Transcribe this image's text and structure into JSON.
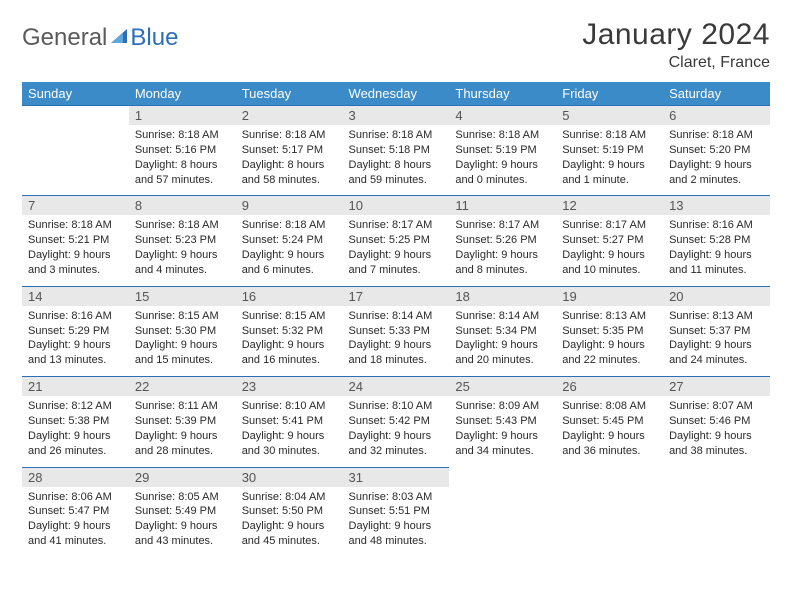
{
  "logo": {
    "text_gray": "General",
    "text_blue": "Blue"
  },
  "header": {
    "title": "January 2024",
    "location": "Claret, France"
  },
  "colors": {
    "header_bg": "#3b8bc8",
    "header_text": "#ffffff",
    "row_divider": "#2d6fb5",
    "daynum_bg": "#e8e8e8",
    "daynum_text": "#555555",
    "body_text": "#2a2a2a",
    "title_text": "#3a3a3a",
    "logo_gray": "#5a5a5a",
    "logo_blue": "#2d6fb5",
    "page_bg": "#ffffff"
  },
  "fonts": {
    "family": "Arial, Helvetica, sans-serif",
    "title_size_pt": 22,
    "subtitle_size_pt": 12,
    "weekday_size_pt": 10,
    "daynum_size_pt": 10,
    "body_size_pt": 8
  },
  "calendar": {
    "type": "table",
    "weekdays": [
      "Sunday",
      "Monday",
      "Tuesday",
      "Wednesday",
      "Thursday",
      "Friday",
      "Saturday"
    ],
    "weeks": [
      [
        null,
        {
          "n": "1",
          "sunrise": "8:18 AM",
          "sunset": "5:16 PM",
          "daylight": "8 hours and 57 minutes."
        },
        {
          "n": "2",
          "sunrise": "8:18 AM",
          "sunset": "5:17 PM",
          "daylight": "8 hours and 58 minutes."
        },
        {
          "n": "3",
          "sunrise": "8:18 AM",
          "sunset": "5:18 PM",
          "daylight": "8 hours and 59 minutes."
        },
        {
          "n": "4",
          "sunrise": "8:18 AM",
          "sunset": "5:19 PM",
          "daylight": "9 hours and 0 minutes."
        },
        {
          "n": "5",
          "sunrise": "8:18 AM",
          "sunset": "5:19 PM",
          "daylight": "9 hours and 1 minute."
        },
        {
          "n": "6",
          "sunrise": "8:18 AM",
          "sunset": "5:20 PM",
          "daylight": "9 hours and 2 minutes."
        }
      ],
      [
        {
          "n": "7",
          "sunrise": "8:18 AM",
          "sunset": "5:21 PM",
          "daylight": "9 hours and 3 minutes."
        },
        {
          "n": "8",
          "sunrise": "8:18 AM",
          "sunset": "5:23 PM",
          "daylight": "9 hours and 4 minutes."
        },
        {
          "n": "9",
          "sunrise": "8:18 AM",
          "sunset": "5:24 PM",
          "daylight": "9 hours and 6 minutes."
        },
        {
          "n": "10",
          "sunrise": "8:17 AM",
          "sunset": "5:25 PM",
          "daylight": "9 hours and 7 minutes."
        },
        {
          "n": "11",
          "sunrise": "8:17 AM",
          "sunset": "5:26 PM",
          "daylight": "9 hours and 8 minutes."
        },
        {
          "n": "12",
          "sunrise": "8:17 AM",
          "sunset": "5:27 PM",
          "daylight": "9 hours and 10 minutes."
        },
        {
          "n": "13",
          "sunrise": "8:16 AM",
          "sunset": "5:28 PM",
          "daylight": "9 hours and 11 minutes."
        }
      ],
      [
        {
          "n": "14",
          "sunrise": "8:16 AM",
          "sunset": "5:29 PM",
          "daylight": "9 hours and 13 minutes."
        },
        {
          "n": "15",
          "sunrise": "8:15 AM",
          "sunset": "5:30 PM",
          "daylight": "9 hours and 15 minutes."
        },
        {
          "n": "16",
          "sunrise": "8:15 AM",
          "sunset": "5:32 PM",
          "daylight": "9 hours and 16 minutes."
        },
        {
          "n": "17",
          "sunrise": "8:14 AM",
          "sunset": "5:33 PM",
          "daylight": "9 hours and 18 minutes."
        },
        {
          "n": "18",
          "sunrise": "8:14 AM",
          "sunset": "5:34 PM",
          "daylight": "9 hours and 20 minutes."
        },
        {
          "n": "19",
          "sunrise": "8:13 AM",
          "sunset": "5:35 PM",
          "daylight": "9 hours and 22 minutes."
        },
        {
          "n": "20",
          "sunrise": "8:13 AM",
          "sunset": "5:37 PM",
          "daylight": "9 hours and 24 minutes."
        }
      ],
      [
        {
          "n": "21",
          "sunrise": "8:12 AM",
          "sunset": "5:38 PM",
          "daylight": "9 hours and 26 minutes."
        },
        {
          "n": "22",
          "sunrise": "8:11 AM",
          "sunset": "5:39 PM",
          "daylight": "9 hours and 28 minutes."
        },
        {
          "n": "23",
          "sunrise": "8:10 AM",
          "sunset": "5:41 PM",
          "daylight": "9 hours and 30 minutes."
        },
        {
          "n": "24",
          "sunrise": "8:10 AM",
          "sunset": "5:42 PM",
          "daylight": "9 hours and 32 minutes."
        },
        {
          "n": "25",
          "sunrise": "8:09 AM",
          "sunset": "5:43 PM",
          "daylight": "9 hours and 34 minutes."
        },
        {
          "n": "26",
          "sunrise": "8:08 AM",
          "sunset": "5:45 PM",
          "daylight": "9 hours and 36 minutes."
        },
        {
          "n": "27",
          "sunrise": "8:07 AM",
          "sunset": "5:46 PM",
          "daylight": "9 hours and 38 minutes."
        }
      ],
      [
        {
          "n": "28",
          "sunrise": "8:06 AM",
          "sunset": "5:47 PM",
          "daylight": "9 hours and 41 minutes."
        },
        {
          "n": "29",
          "sunrise": "8:05 AM",
          "sunset": "5:49 PM",
          "daylight": "9 hours and 43 minutes."
        },
        {
          "n": "30",
          "sunrise": "8:04 AM",
          "sunset": "5:50 PM",
          "daylight": "9 hours and 45 minutes."
        },
        {
          "n": "31",
          "sunrise": "8:03 AM",
          "sunset": "5:51 PM",
          "daylight": "9 hours and 48 minutes."
        },
        null,
        null,
        null
      ]
    ]
  },
  "labels": {
    "sunrise": "Sunrise:",
    "sunset": "Sunset:",
    "daylight": "Daylight:"
  }
}
